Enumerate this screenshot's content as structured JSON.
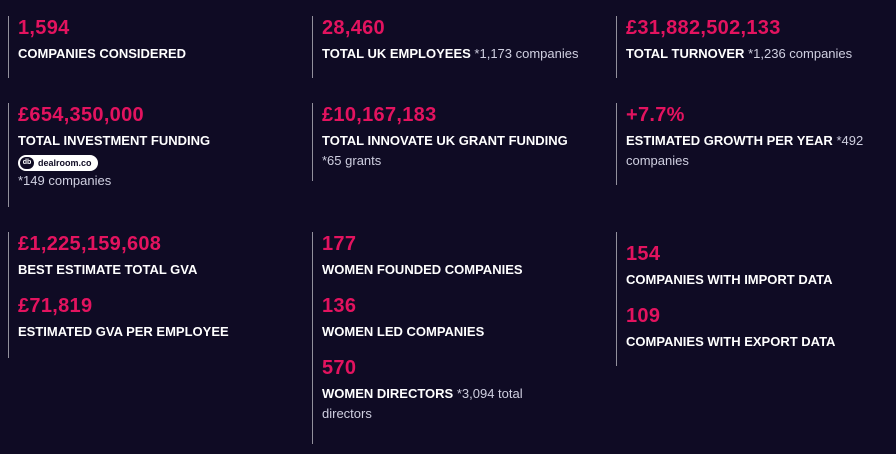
{
  "c1": {
    "value": "1,594",
    "label": "COMPANIES CONSIDERED"
  },
  "c2": {
    "value": "28,460",
    "label": "TOTAL UK EMPLOYEES",
    "note": "*1,173 companies"
  },
  "c3": {
    "value": "£31,882,502,133",
    "label": "TOTAL TURNOVER",
    "note": "*1,236 companies"
  },
  "c4": {
    "value": "£654,350,000",
    "label": "TOTAL INVESTMENT FUNDING",
    "badge_logo": "db",
    "badge_text": "dealroom.co",
    "note": "*149 companies"
  },
  "c5": {
    "value": "£10,167,183",
    "label": "TOTAL INNOVATE UK GRANT FUNDING",
    "note": "*65 grants"
  },
  "c6": {
    "value": "+7.7%",
    "label": "ESTIMATED GROWTH PER YEAR",
    "note": "*492 companies"
  },
  "c7": {
    "value1": "£1,225,159,608",
    "label1": "BEST ESTIMATE TOTAL GVA",
    "value2": "£71,819",
    "label2": "ESTIMATED GVA PER EMPLOYEE"
  },
  "c8": {
    "value1": "177",
    "label1": "WOMEN FOUNDED COMPANIES",
    "value2": "136",
    "label2": "WOMEN LED COMPANIES",
    "value3": "570",
    "label3": "WOMEN DIRECTORS",
    "note3": "*3,094 total directors"
  },
  "c9": {
    "value1": "154",
    "label1": "COMPANIES WITH IMPORT DATA",
    "value2": "109",
    "label2": "COMPANIES WITH EXPORT DATA"
  },
  "colors": {
    "background": "#0f0b24",
    "accent": "#e3135f",
    "text": "#ffffff"
  }
}
